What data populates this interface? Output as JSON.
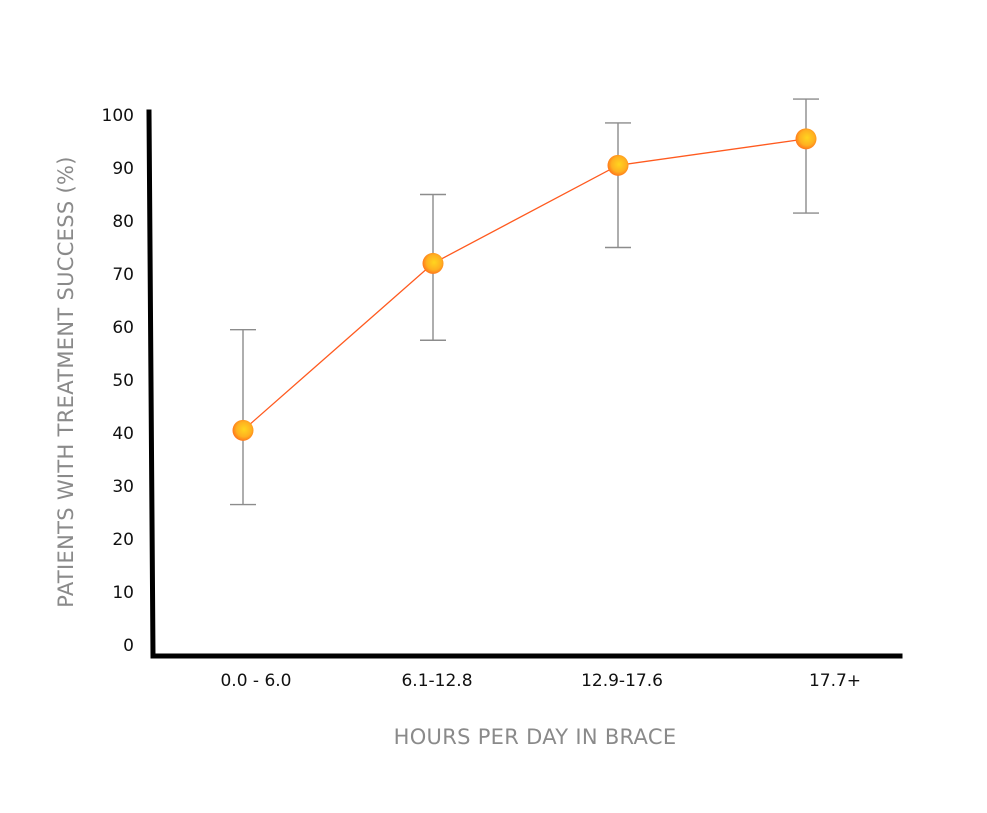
{
  "chart_data": {
    "type": "line",
    "title": "",
    "xlabel": "HOURS PER DAY IN BRACE",
    "ylabel": "PATIENTS WITH TREATMENT SUCCESS (%)",
    "ylim": [
      0,
      100
    ],
    "yticks": [
      "0",
      "10",
      "20",
      "30",
      "40",
      "50",
      "60",
      "70",
      "80",
      "90",
      "100"
    ],
    "categories": [
      "0.0 - 6.0",
      "6.1-12.8",
      "12.9-17.6",
      "17.7+"
    ],
    "series": [
      {
        "values": [
          40.5,
          72,
          90.5,
          95.5
        ],
        "error_low": [
          26.5,
          57.5,
          75,
          81.5
        ],
        "error_high": [
          59.5,
          85,
          98.5,
          103
        ],
        "color": "#ff5a1f"
      }
    ],
    "marker_colors": {
      "outer": "#ff6a1a",
      "inner": "#ffd51f"
    },
    "error_bar_color": "#8c8c8c",
    "axis_color": "#000000",
    "grid": false,
    "legend": "none"
  }
}
